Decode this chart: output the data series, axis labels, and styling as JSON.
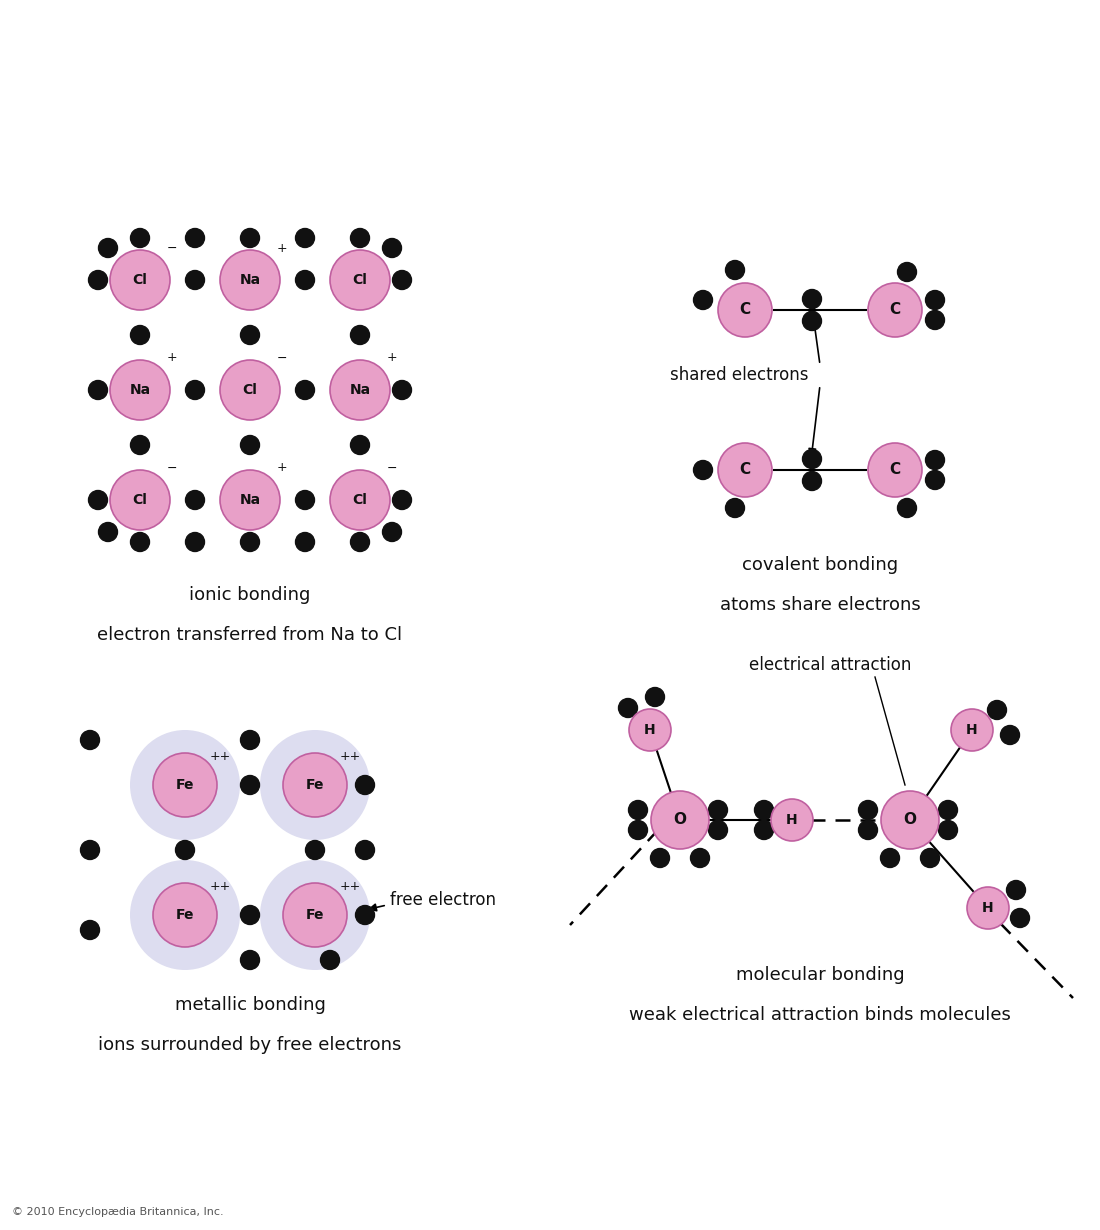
{
  "bg_color": "#ffffff",
  "atom_color": "#e8a0c8",
  "atom_edge_color": "#c060a0",
  "electron_color": "#111111",
  "fe_cloud_color": "#ddddf0",
  "label_color": "#111111",
  "copyright": "© 2010 Encyclopædia Britannica, Inc.",
  "ionic_title1": "ionic bonding",
  "ionic_title2": "electron transferred from Na to Cl",
  "covalent_title1": "covalent bonding",
  "covalent_title2": "atoms share electrons",
  "metallic_title1": "metallic bonding",
  "metallic_title2": "ions surrounded by free electrons",
  "molecular_title1": "molecular bonding",
  "molecular_title2": "weak electrical attraction binds molecules",
  "shared_electrons_label": "shared electrons",
  "free_electron_label": "free electron",
  "electrical_attraction_label": "electrical attraction"
}
